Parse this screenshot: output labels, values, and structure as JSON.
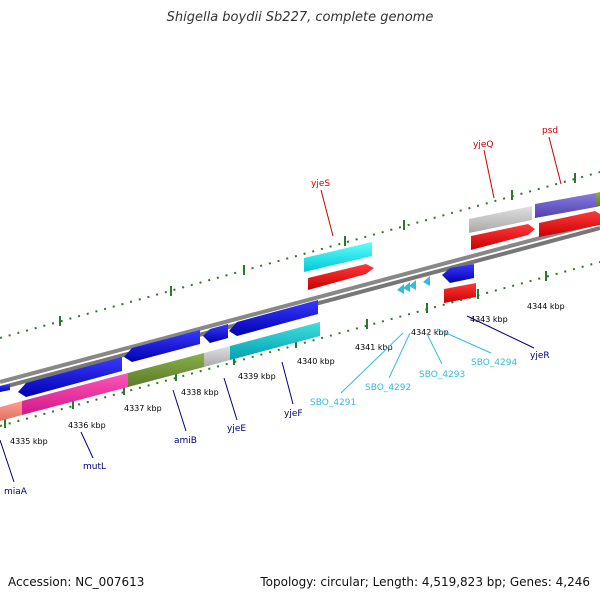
{
  "title": "Shigella boydii Sb227, complete genome",
  "footer": {
    "accession": "Accession: NC_007613",
    "summary": "Topology: circular; Length: 4,519,823 bp; Genes: 4,246"
  },
  "colors": {
    "label_red": "#cc0000",
    "label_navy": "#000080",
    "label_cyan": "#33bbdd",
    "backbone": "#888888",
    "tick": "#2a7a2a"
  },
  "kbp_ticks": [
    {
      "label": "4335 kbp"
    },
    {
      "label": "4336 kbp"
    },
    {
      "label": "4337 kbp"
    },
    {
      "label": "4338 kbp"
    },
    {
      "label": "4339 kbp"
    },
    {
      "label": "4340 kbp"
    },
    {
      "label": "4341 kbp"
    },
    {
      "label": "4342 kbp"
    },
    {
      "label": "4343 kbp"
    },
    {
      "label": "4344 kbp"
    }
  ],
  "gene_labels": [
    {
      "text": "yjeS"
    },
    {
      "text": "yjeQ"
    },
    {
      "text": "psd"
    },
    {
      "text": "miaA"
    },
    {
      "text": "mutL"
    },
    {
      "text": "amiB"
    },
    {
      "text": "yjeE"
    },
    {
      "text": "yjeF"
    },
    {
      "text": "yjeR"
    },
    {
      "text": "SBO_4291"
    },
    {
      "text": "SBO_4292"
    },
    {
      "text": "SBO_4293"
    },
    {
      "text": "SBO_4294"
    }
  ]
}
